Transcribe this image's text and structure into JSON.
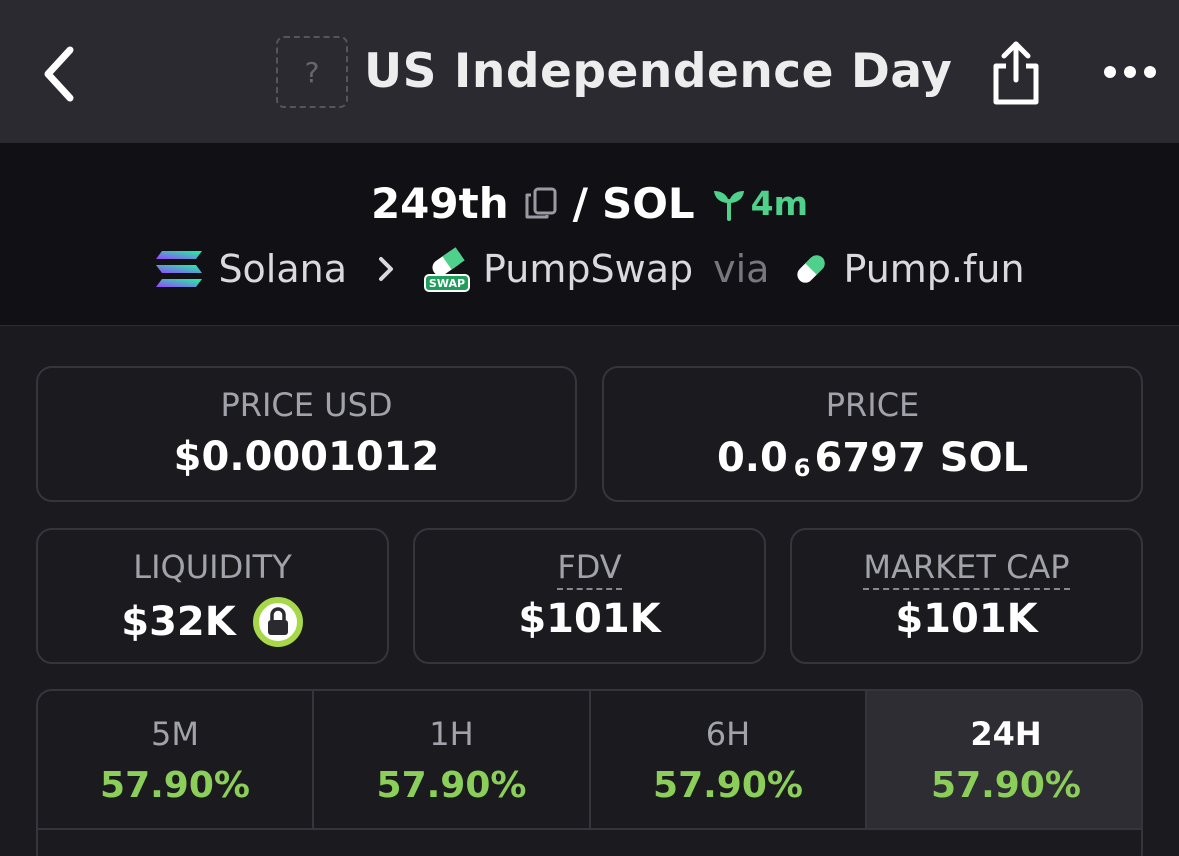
{
  "header": {
    "token_placeholder": "?",
    "title": "US Independence Day"
  },
  "pair": {
    "base": "249th",
    "separator": "/",
    "quote": "SOL",
    "age": "4m",
    "chain": "Solana",
    "dex": "PumpSwap",
    "via": "via",
    "launchpad": "Pump.fun",
    "swap_badge_text": "SWAP"
  },
  "stats": {
    "price_usd_label": "PRICE USD",
    "price_usd_value": "$0.0001012",
    "price_label": "PRICE",
    "price_value_prefix": "0.0",
    "price_value_zeros": "6",
    "price_value_suffix": "6797 SOL",
    "liquidity_label": "LIQUIDITY",
    "liquidity_value": "$32K",
    "fdv_label": "FDV",
    "fdv_value": "$101K",
    "mcap_label": "MARKET CAP",
    "mcap_value": "$101K"
  },
  "timeframes": [
    {
      "label": "5M",
      "value": "57.90%"
    },
    {
      "label": "1H",
      "value": "57.90%"
    },
    {
      "label": "6H",
      "value": "57.90%"
    },
    {
      "label": "24H",
      "value": "57.90%"
    }
  ],
  "colors": {
    "positive": "#8bcf5a",
    "age_green": "#4fd18b",
    "lock_ring": "#a6d84a"
  }
}
